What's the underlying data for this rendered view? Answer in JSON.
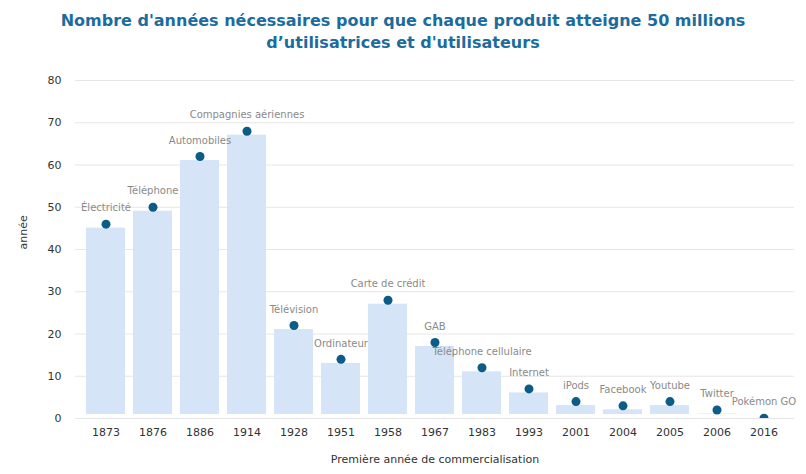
{
  "chart_data": {
    "type": "bar",
    "title": [
      "Nombre d'années nécessaires pour que chaque produit atteigne 50 millions",
      "d’utilisatrices et d'utilisateurs"
    ],
    "x_label": "Première année de commercialisation",
    "y_label": "année",
    "categories": [
      "1873",
      "1876",
      "1886",
      "1914",
      "1928",
      "1951",
      "1958",
      "1967",
      "1983",
      "1993",
      "2001",
      "2004",
      "2005",
      "2006",
      "2016"
    ],
    "annotations": [
      "Électricité",
      "Téléphone",
      "Automobiles",
      "Compagnies aériennes",
      "Télévision",
      "Ordinateur",
      "Carte de crédit",
      "GAB",
      "Téléphone cellulaire",
      "Internet",
      "iPods",
      "Facebook",
      "Youtube",
      "Twitter",
      "Pokémon GO"
    ],
    "values": [
      46,
      50,
      62,
      68,
      22,
      14,
      28,
      18,
      12,
      7,
      4,
      3,
      4,
      2,
      0.05
    ],
    "color": "#d5e4f6",
    "marker": "circle",
    "ylim": [
      0,
      80
    ],
    "yticks": [
      0,
      10,
      20,
      30,
      40,
      50,
      60,
      70,
      80
    ],
    "grid": true
  }
}
